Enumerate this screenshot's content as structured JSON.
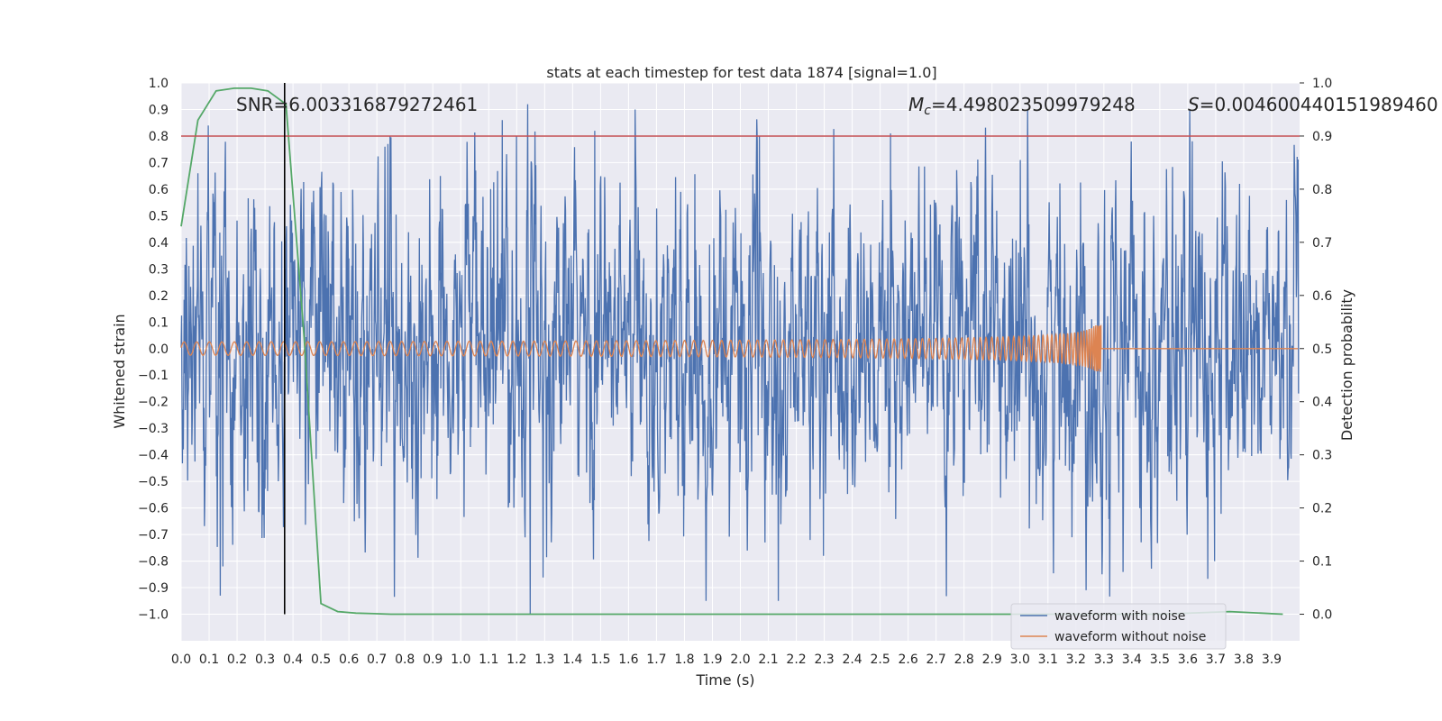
{
  "chart_data": {
    "type": "line",
    "title": "stats at each timestep for test data 1874 [signal=1.0]",
    "xlabel": "Time (s)",
    "ylabel": "Whitened strain",
    "y2label": "Detection probability",
    "xlim": [
      0.0,
      4.0
    ],
    "ylim": [
      -1.1,
      1.0
    ],
    "y2lim": [
      -0.05,
      1.0
    ],
    "xticks": [
      "0.0",
      "0.1",
      "0.2",
      "0.3",
      "0.4",
      "0.5",
      "0.6",
      "0.7",
      "0.8",
      "0.9",
      "1.0",
      "1.1",
      "1.2",
      "1.3",
      "1.4",
      "1.5",
      "1.6",
      "1.7",
      "1.8",
      "1.9",
      "2.0",
      "2.1",
      "2.2",
      "2.3",
      "2.4",
      "2.5",
      "2.6",
      "2.7",
      "2.8",
      "2.9",
      "3.0",
      "3.1",
      "3.2",
      "3.3",
      "3.4",
      "3.5",
      "3.6",
      "3.7",
      "3.8",
      "3.9"
    ],
    "yticks": [
      "1.0",
      "0.9",
      "0.8",
      "0.7",
      "0.6",
      "0.5",
      "0.4",
      "0.3",
      "0.2",
      "0.1",
      "0.0",
      "−0.1",
      "−0.2",
      "−0.3",
      "−0.4",
      "−0.5",
      "−0.6",
      "−0.7",
      "−0.8",
      "−0.9",
      "−1.0"
    ],
    "y2ticks": [
      "1.0",
      "0.9",
      "0.8",
      "0.7",
      "0.6",
      "0.5",
      "0.4",
      "0.3",
      "0.2",
      "0.1",
      "0.0"
    ],
    "threshold": 0.9,
    "marker_time": 0.37,
    "annotations": {
      "snr": "SNR=6.003316879272461",
      "mc_symbol": "M",
      "mc_sub": "c",
      "mc_value": "=4.498023509979248",
      "s_symbol": "S",
      "s_value": "=0.004600440151989460"
    },
    "legend": {
      "position": "lower right",
      "entries": [
        "waveform with noise",
        "waveform without noise"
      ]
    },
    "series": [
      {
        "name": "waveform with noise",
        "axis": "left",
        "color": "#4c72b0",
        "style": "noise",
        "amplitude": 0.3,
        "peaks": [
          [
            0.14,
            -0.93
          ],
          [
            0.06,
            0.66
          ],
          [
            0.15,
            -0.82
          ],
          [
            0.73,
            0.76
          ],
          [
            0.74,
            0.77
          ],
          [
            1.15,
            0.86
          ],
          [
            1.2,
            0.8
          ],
          [
            1.24,
            0.92
          ],
          [
            1.25,
            -1.0
          ],
          [
            1.48,
            0.82
          ],
          [
            2.07,
            0.8
          ],
          [
            2.09,
            -0.73
          ],
          [
            2.3,
            -0.78
          ],
          [
            2.54,
            0.81
          ],
          [
            3.7,
            -0.8
          ],
          [
            3.62,
            0.78
          ]
        ]
      },
      {
        "name": "waveform without noise",
        "axis": "left",
        "color": "#dd8452",
        "style": "chirp",
        "merger_time": 3.29,
        "start_amplitude": 0.025,
        "peak_amplitude": 0.13
      },
      {
        "name": "detection probability",
        "axis": "right",
        "color": "#55a868",
        "x": [
          0.0,
          0.06,
          0.125,
          0.19,
          0.25,
          0.31,
          0.375,
          0.44,
          0.5,
          0.56,
          0.625,
          0.69,
          0.75,
          1.5,
          2.5,
          3.5,
          3.75,
          3.94
        ],
        "y": [
          0.73,
          0.93,
          0.985,
          0.99,
          0.99,
          0.985,
          0.96,
          0.52,
          0.02,
          0.005,
          0.002,
          0.001,
          0.0,
          0.0,
          0.0,
          0.0,
          0.005,
          0.0
        ]
      }
    ]
  }
}
